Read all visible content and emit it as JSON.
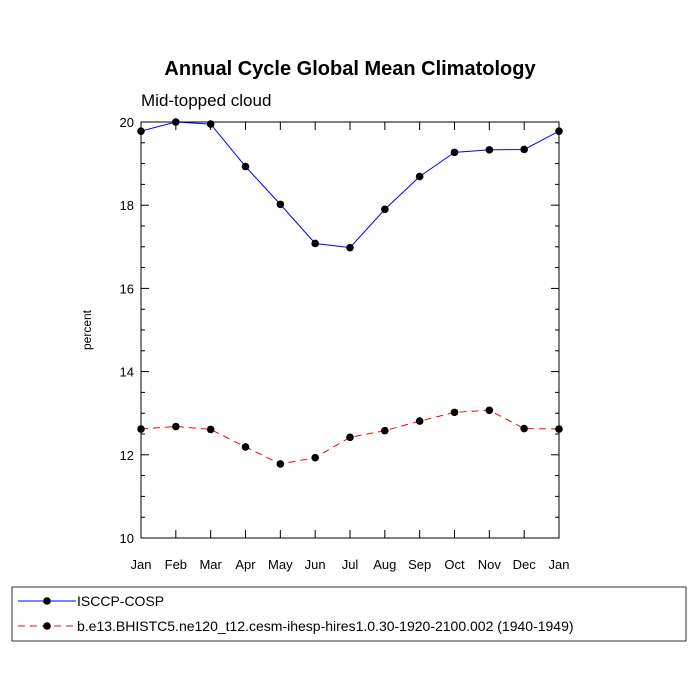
{
  "chart_data": {
    "type": "line",
    "title": "Annual Cycle Global Mean Climatology",
    "subtitle": "Mid-topped cloud",
    "ylabel": "percent",
    "xlabel": "",
    "ylim": [
      10,
      20
    ],
    "yticks": [
      10,
      12,
      14,
      16,
      18,
      20
    ],
    "categories": [
      "Jan",
      "Feb",
      "Mar",
      "Apr",
      "May",
      "Jun",
      "Jul",
      "Aug",
      "Sep",
      "Oct",
      "Nov",
      "Dec",
      "Jan"
    ],
    "grid": false,
    "legend_position": "bottom",
    "series": [
      {
        "name": "ISCCP-COSP",
        "color": "#0000ff",
        "line_style": "solid",
        "marker": "filled-circle",
        "values": [
          19.78,
          20.0,
          19.95,
          18.93,
          18.02,
          17.08,
          16.98,
          17.9,
          18.69,
          19.27,
          19.33,
          19.34,
          19.78
        ]
      },
      {
        "name": "b.e13.BHISTC5.ne120_t12.cesm-ihesp-hires1.0.30-1920-2100.002 (1940-1949)",
        "color": "#ff0000",
        "line_style": "dashed",
        "marker": "filled-circle",
        "values": [
          12.62,
          12.68,
          12.61,
          12.19,
          11.78,
          11.93,
          12.42,
          12.58,
          12.81,
          13.02,
          13.07,
          12.63,
          12.62
        ]
      }
    ]
  }
}
